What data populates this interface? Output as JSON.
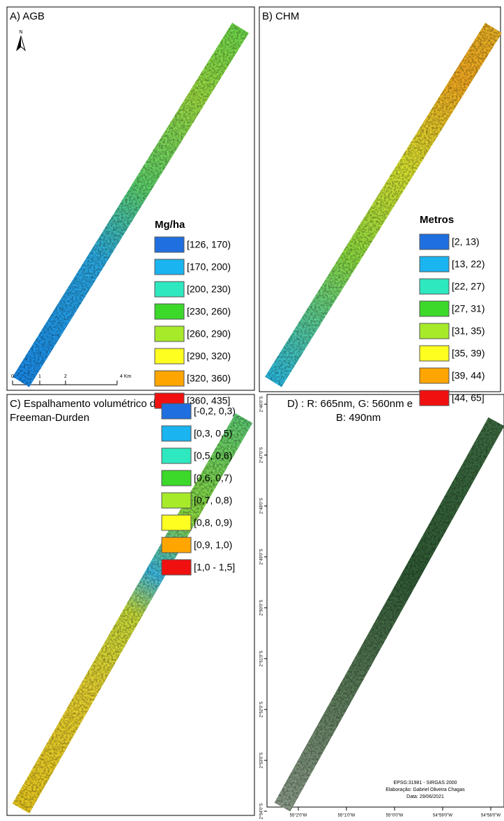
{
  "panels": [
    {
      "title": [
        "A) AGB"
      ],
      "legend_title": "Mg/ha",
      "legend": [
        {
          "label": "[126, 170)",
          "color": "#1f6fe0"
        },
        {
          "label": "[170, 200)",
          "color": "#1ab4f0"
        },
        {
          "label": "[200, 230)",
          "color": "#2ee8c0"
        },
        {
          "label": "[230, 260)",
          "color": "#3cd82a"
        },
        {
          "label": "[260, 290)",
          "color": "#a6ea2a"
        },
        {
          "label": "[290, 320)",
          "color": "#fefe20"
        },
        {
          "label": "[320, 360)",
          "color": "#fea500"
        },
        {
          "label": "[360, 435]",
          "color": "#f01010"
        }
      ]
    },
    {
      "title": [
        "B) CHM"
      ],
      "legend_title": "Metros",
      "legend": [
        {
          "label": "[2, 13)",
          "color": "#1f6fe0"
        },
        {
          "label": "[13, 22)",
          "color": "#1ab4f0"
        },
        {
          "label": "[22, 27)",
          "color": "#2ee8c0"
        },
        {
          "label": "[27, 31)",
          "color": "#3cd82a"
        },
        {
          "label": "[31, 35)",
          "color": "#a6ea2a"
        },
        {
          "label": "[35, 39)",
          "color": "#fefe20"
        },
        {
          "label": "[39, 44)",
          "color": "#fea500"
        },
        {
          "label": "[44, 65]",
          "color": "#f01010"
        }
      ]
    },
    {
      "title": [
        "C) Espalhamento volumétrico de",
        "Freeman-Durden"
      ],
      "legend": [
        {
          "label": "[-0,2, 0,3)",
          "color": "#1f6fe0"
        },
        {
          "label": "[0,3, 0,5)",
          "color": "#1ab4f0"
        },
        {
          "label": "[0,5, 0,6)",
          "color": "#2ee8c0"
        },
        {
          "label": "[0,6, 0,7)",
          "color": "#3cd82a"
        },
        {
          "label": "[0,7, 0,8)",
          "color": "#a6ea2a"
        },
        {
          "label": "[0,8, 0,9)",
          "color": "#fefe20"
        },
        {
          "label": "[0,9, 1,0)",
          "color": "#fea500"
        },
        {
          "label": "[1,0 - 1,5]",
          "color": "#f01010"
        }
      ]
    },
    {
      "title": [
        "D) : R: 665nm, G: 560nm e",
        "B: 490nm"
      ]
    }
  ],
  "north_label": "N",
  "scale_bar": [
    "0",
    "1",
    "2",
    "4 Km"
  ],
  "latitude_labels": [
    "2°46'0\"S",
    "2°47'0\"S",
    "2°48'0\"S",
    "2°49'0\"S",
    "2°50'0\"S",
    "2°51'0\"S",
    "2°52'0\"S",
    "2°53'0\"S",
    "2°54'0\"S"
  ],
  "longitude_labels": [
    "55°2'0\"W",
    "55°1'0\"W",
    "55°0'0\"W",
    "54°59'0\"W",
    "54°58'0\"W"
  ],
  "credits": [
    "EPSG:31981 - SIRGAS 2000",
    "Elaboração: Gabriel Oliveira Chagas",
    "Data: 29/06/2021"
  ]
}
